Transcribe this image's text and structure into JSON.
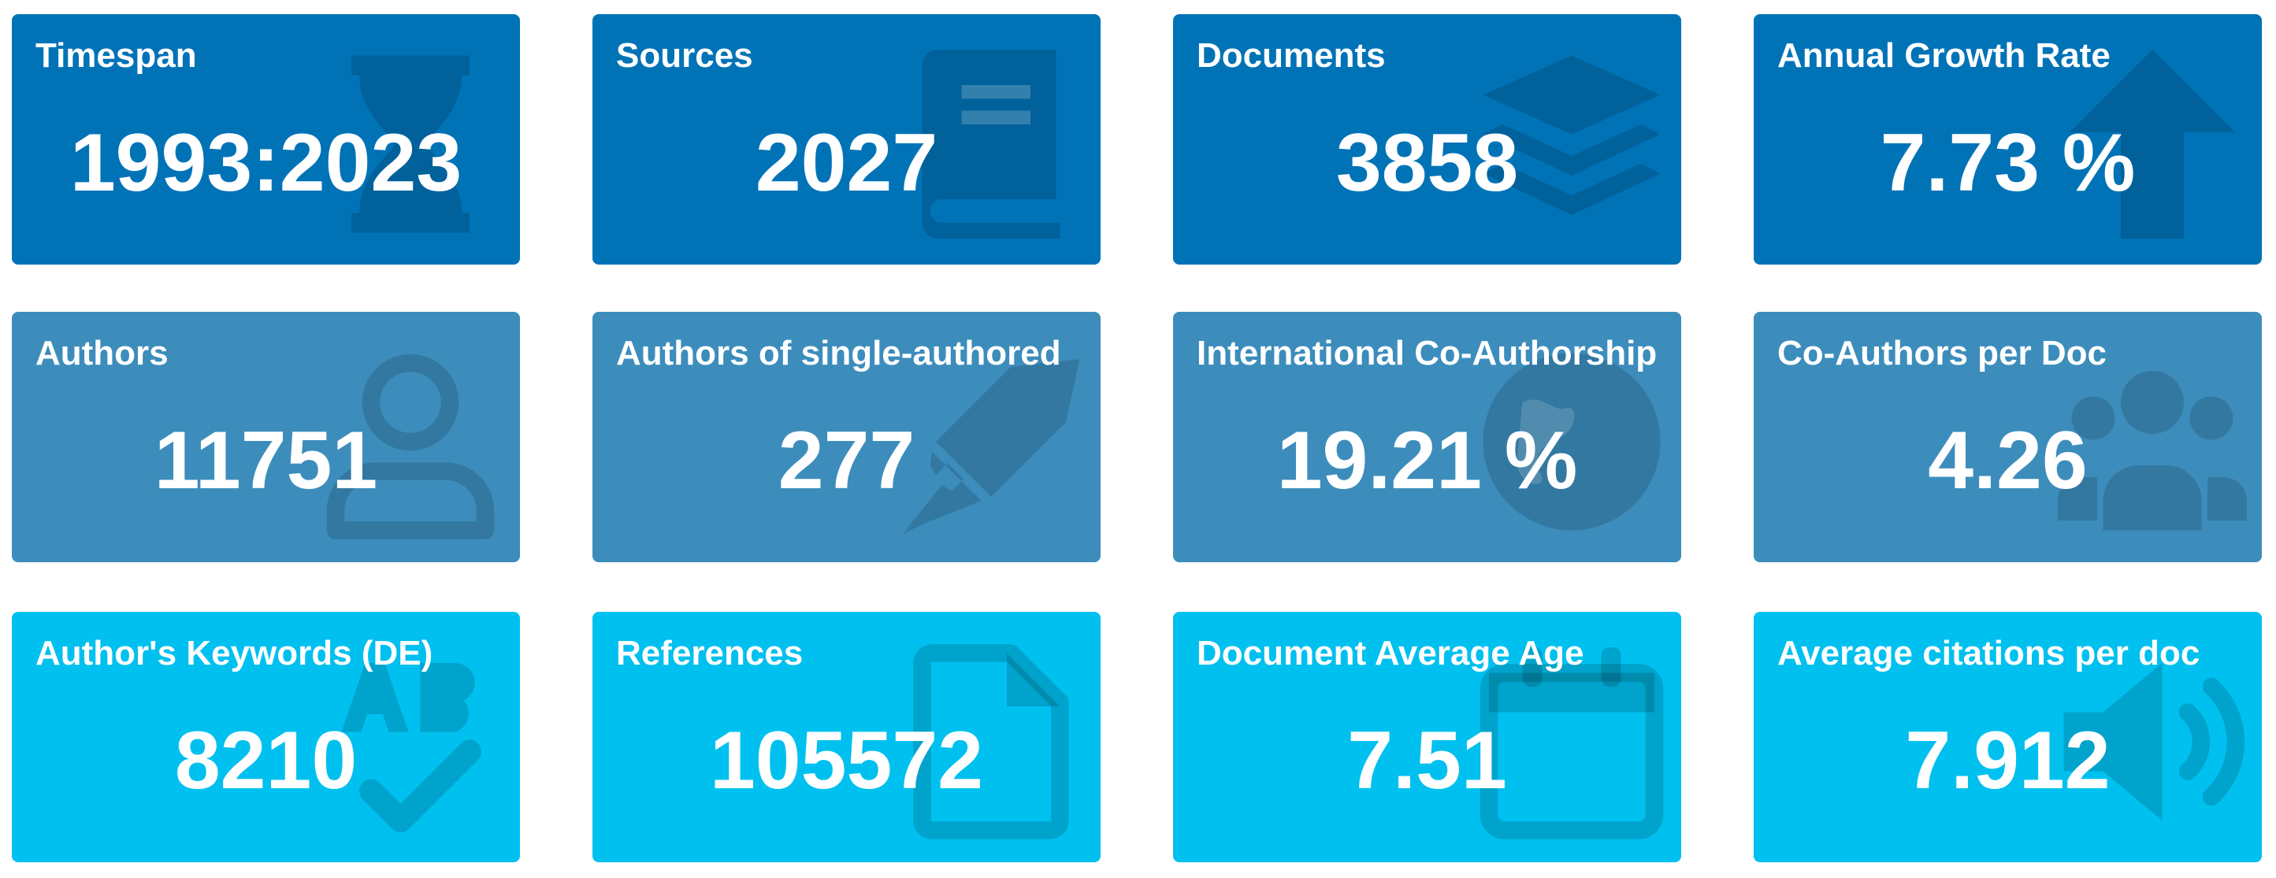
{
  "cards": [
    {
      "title": "Timespan",
      "value": "1993:2023"
    },
    {
      "title": "Sources",
      "value": "2027"
    },
    {
      "title": "Documents",
      "value": "3858"
    },
    {
      "title": "Annual Growth Rate",
      "value": "7.73 %"
    },
    {
      "title": "Authors",
      "value": "11751"
    },
    {
      "title": "Authors of single-authored",
      "value": "277"
    },
    {
      "title": "International Co-Authorship",
      "value": "19.21 %"
    },
    {
      "title": "Co-Authors per Doc",
      "value": "4.26"
    },
    {
      "title": "Author's Keywords (DE)",
      "value": "8210"
    },
    {
      "title": "References",
      "value": "105572"
    },
    {
      "title": "Document Average Age",
      "value": "7.51"
    },
    {
      "title": "Average citations per doc",
      "value": "7.912"
    }
  ]
}
